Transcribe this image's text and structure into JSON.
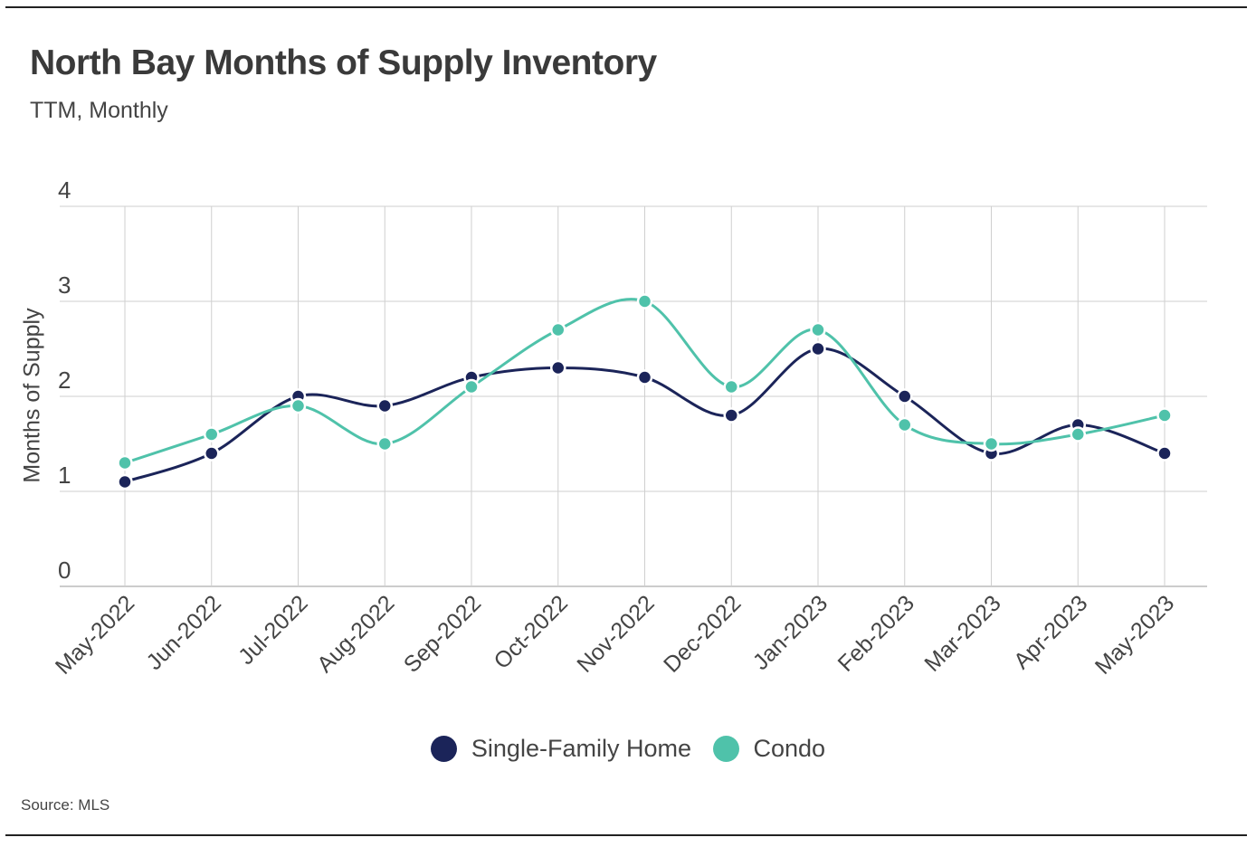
{
  "title": "North Bay Months of Supply Inventory",
  "subtitle": "TTM, Monthly",
  "source": "Source:  MLS",
  "colors": {
    "sfh": "#1b2459",
    "condo": "#4fc2aa",
    "grid": "#cfcfcf",
    "axis": "#999999"
  },
  "chart_data": {
    "type": "line",
    "title": "North Bay Months of Supply Inventory",
    "subtitle": "TTM, Monthly",
    "xlabel": "",
    "ylabel": "Months of Supply",
    "ylim": [
      0,
      4
    ],
    "yticks": [
      "0",
      "1",
      "2",
      "3",
      "4"
    ],
    "grid": true,
    "legend_position": "bottom",
    "categories": [
      "May-2022",
      "Jun-2022",
      "Jul-2022",
      "Aug-2022",
      "Sep-2022",
      "Oct-2022",
      "Nov-2022",
      "Dec-2022",
      "Jan-2023",
      "Feb-2023",
      "Mar-2023",
      "Apr-2023",
      "May-2023"
    ],
    "series": [
      {
        "name": "Single-Family Home",
        "color": "#1b2459",
        "values": [
          1.1,
          1.4,
          2.0,
          1.9,
          2.2,
          2.3,
          2.2,
          1.8,
          2.5,
          2.0,
          1.4,
          1.7,
          1.4
        ]
      },
      {
        "name": "Condo",
        "color": "#4fc2aa",
        "values": [
          1.3,
          1.6,
          1.9,
          1.5,
          2.1,
          2.7,
          3.0,
          2.1,
          2.7,
          1.7,
          1.5,
          1.6,
          1.8
        ]
      }
    ]
  }
}
